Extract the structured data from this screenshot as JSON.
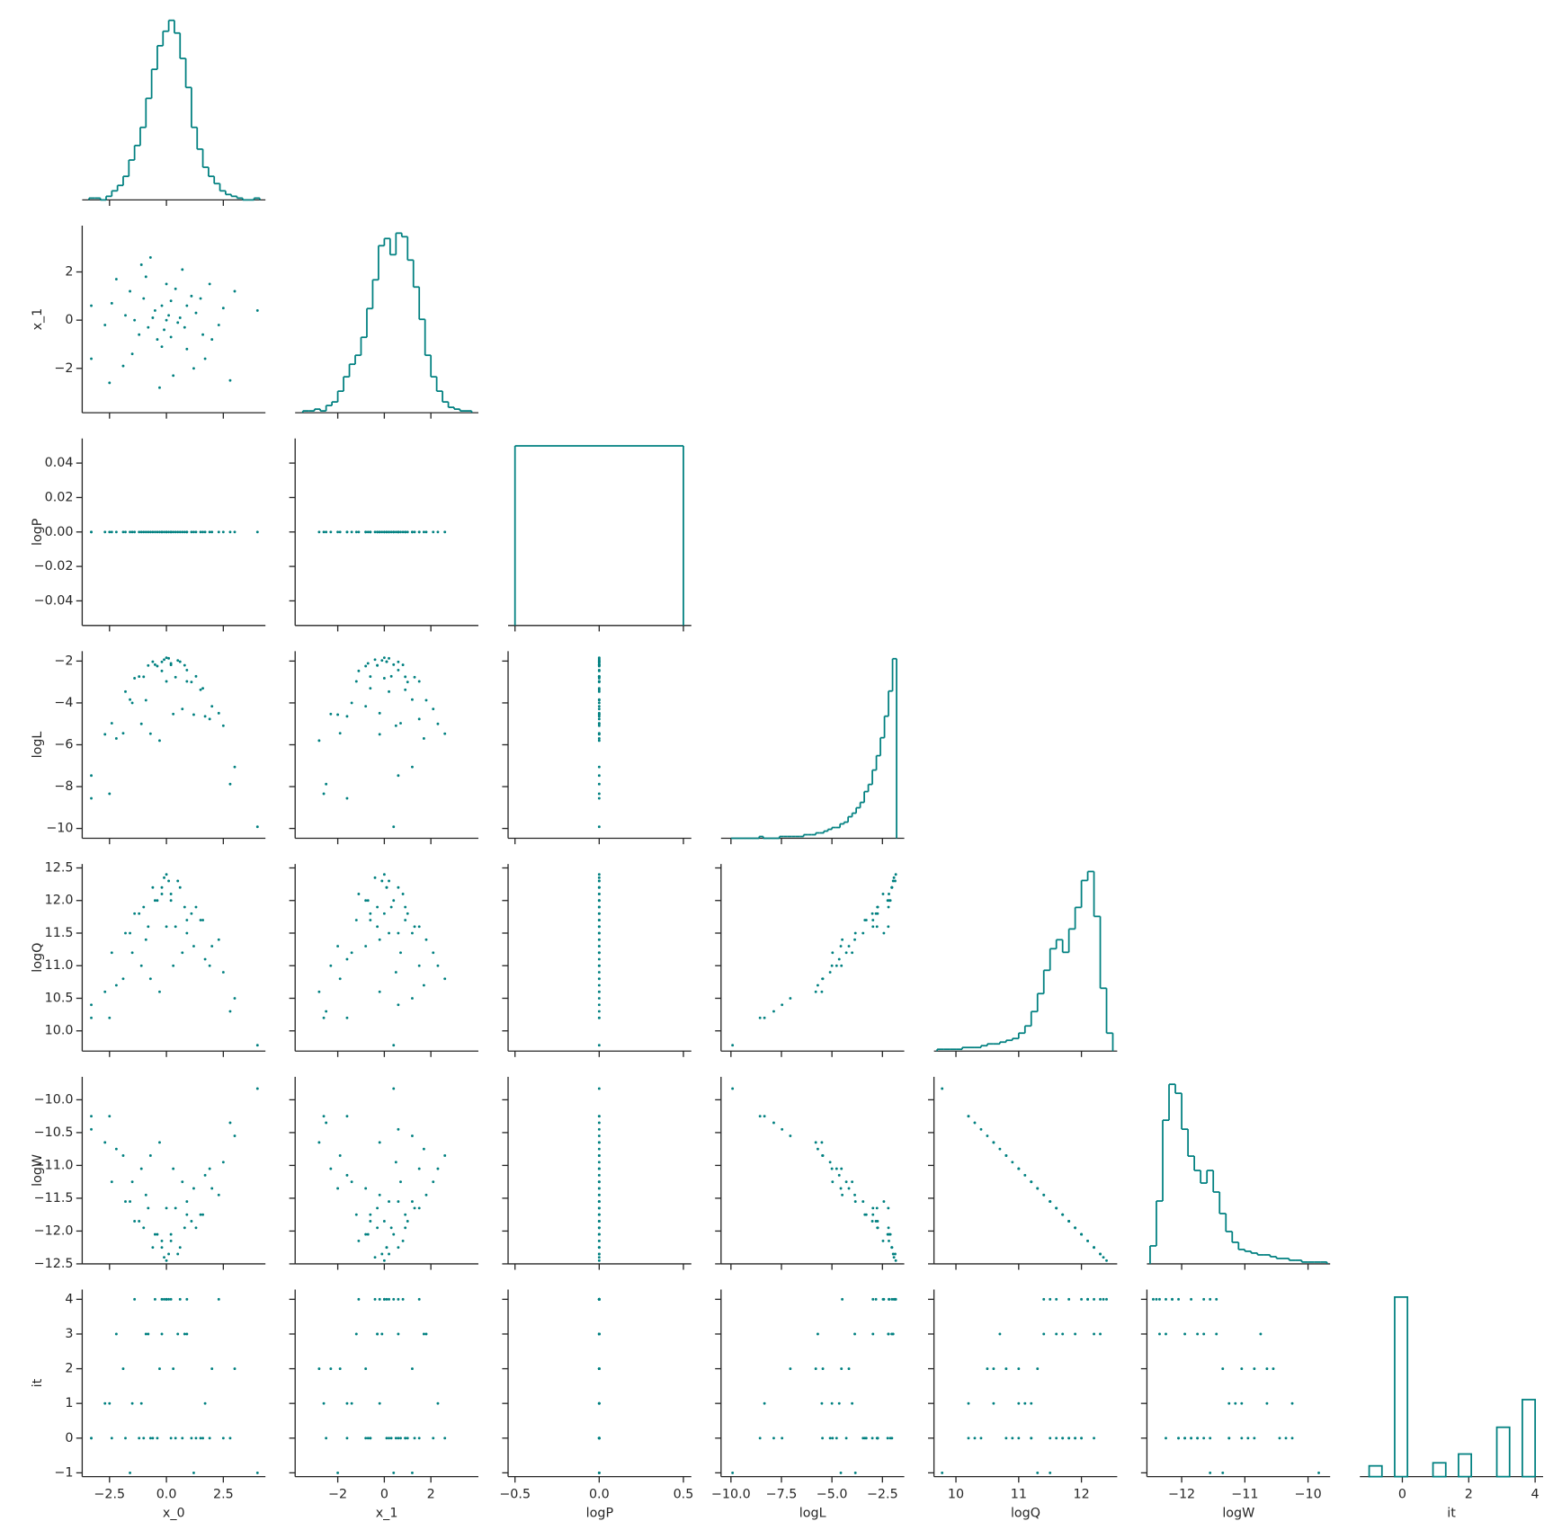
{
  "chart_data": {
    "type": "pairplot",
    "color": "#008080",
    "variables": [
      {
        "name": "x_0",
        "xlim": [
          -3.7,
          4.35
        ],
        "xticks": [
          {
            "value": -2.5,
            "label": "−2.5"
          },
          {
            "value": 0,
            "label": "0.0"
          },
          2.5
        ],
        "values": [
          0.1,
          -0.5,
          0.8,
          -1.2,
          1.5,
          -0.2,
          0.4,
          -1.8,
          2.0,
          -0.9,
          0.6,
          -0.1,
          1.1,
          -1.5,
          2.5,
          -2.7,
          0.3,
          -0.7,
          3.0,
          -3.3,
          0.0,
          0.9,
          -1.0,
          1.7,
          -2.2,
          0.2,
          -0.4,
          1.3,
          -1.4,
          0.7,
          -0.3,
          2.8,
          -2.5,
          4.0,
          -3.3,
          0.5,
          -0.6,
          1.9,
          -1.9,
          0.0,
          1.2,
          -1.1,
          2.3,
          -2.4,
          0.9,
          -0.8,
          0.2,
          -0.2,
          1.6,
          -1.6
        ]
      },
      {
        "name": "x_1",
        "xlim": [
          -3.83,
          4.04
        ],
        "xticks": [
          {
            "value": -2,
            "label": "−2"
          },
          0,
          2
        ],
        "ylim": [
          -3.84,
          3.92
        ],
        "yticks": [
          {
            "value": -2,
            "label": "−2"
          },
          0,
          2
        ],
        "values": [
          0.2,
          0.4,
          -0.3,
          -0.6,
          0.9,
          -1.1,
          1.3,
          0.2,
          -0.8,
          1.8,
          0.1,
          -0.4,
          1.0,
          -1.4,
          0.5,
          -0.2,
          -2.3,
          2.6,
          1.2,
          0.6,
          0.0,
          -1.2,
          0.9,
          -1.6,
          1.7,
          0.8,
          -0.8,
          0.3,
          0.0,
          2.1,
          -2.8,
          -2.5,
          -2.6,
          0.4,
          -1.6,
          -0.1,
          0.1,
          1.5,
          -1.9,
          1.5,
          -2.0,
          2.3,
          -0.2,
          0.7,
          0.6,
          -0.3,
          -0.7,
          0.6,
          -0.6,
          1.2
        ]
      },
      {
        "name": "logP",
        "xlim": [
          -0.541,
          0.547
        ],
        "xticks": [
          {
            "value": -0.5,
            "label": "−0.5"
          },
          {
            "value": 0,
            "label": "0.0"
          },
          0.5
        ],
        "ylim": [
          -0.0543,
          0.0543
        ],
        "yticks": [
          {
            "value": -0.04,
            "label": "−0.04"
          },
          {
            "value": -0.02,
            "label": "−0.02"
          },
          {
            "value": 0,
            "label": "0.00"
          },
          0.02,
          0.04
        ],
        "values": [
          0,
          0,
          0,
          0,
          0,
          0,
          0,
          0,
          0,
          0,
          0,
          0,
          0,
          0,
          0,
          0,
          0,
          0,
          0,
          0,
          0,
          0,
          0,
          0,
          0,
          0,
          0,
          0,
          0,
          0,
          0,
          0,
          0,
          0,
          0,
          0,
          0,
          0,
          0,
          0,
          0,
          0,
          0,
          0,
          0,
          0,
          0,
          0,
          0,
          0
        ]
      },
      {
        "name": "logL",
        "xlim": [
          -10.49,
          -1.42
        ],
        "xticks": [
          {
            "value": -10,
            "label": "−10.0"
          },
          {
            "value": -7.5,
            "label": "−7.5"
          },
          {
            "value": -5,
            "label": "−5.0"
          },
          {
            "value": -2.5,
            "label": "−2.5"
          }
        ],
        "ylim": [
          -10.47,
          -1.53
        ],
        "yticks": [
          {
            "value": -10,
            "label": "−10"
          },
          {
            "value": -8,
            "label": "−8"
          },
          {
            "value": -6,
            "label": "−6"
          },
          {
            "value": -4,
            "label": "−4"
          },
          {
            "value": -2,
            "label": "−2"
          }
        ],
        "values": [
          -1.87,
          -2.17,
          -2.2,
          -2.74,
          -3.37,
          -2.47,
          -2.77,
          -3.46,
          -4.16,
          -3.87,
          -2.03,
          -1.93,
          -3.0,
          -4.0,
          -5.09,
          -5.5,
          -4.53,
          -5.47,
          -7.06,
          -7.47,
          -1.84,
          -2.97,
          -2.75,
          -4.64,
          -5.7,
          -2.18,
          -2.24,
          -2.73,
          -2.82,
          -4.29,
          -5.8,
          -7.88,
          -8.34,
          -9.92,
          -8.56,
          -1.97,
          -2.03,
          -4.77,
          -5.45,
          -2.97,
          -4.56,
          -5.0,
          -4.49,
          -4.97,
          -2.43,
          -2.21,
          -2.11,
          -2.04,
          -3.3,
          -3.84
        ]
      },
      {
        "name": "logQ",
        "xlim": [
          9.65,
          12.57
        ],
        "xticks": [
          10,
          11,
          12
        ],
        "ylim": [
          9.69,
          12.56
        ],
        "yticks": [
          {
            "value": 10,
            "label": "10.0"
          },
          10.5,
          {
            "value": 11,
            "label": "11.0"
          },
          11.5,
          {
            "value": 12,
            "label": "12.0"
          },
          12.5
        ],
        "values": [
          12.3,
          12.0,
          11.9,
          11.8,
          11.7,
          12.1,
          11.6,
          11.5,
          11.3,
          11.4,
          12.2,
          12.35,
          11.8,
          11.2,
          10.9,
          10.6,
          11.0,
          10.8,
          10.5,
          10.4,
          12.4,
          11.7,
          11.9,
          11.1,
          10.7,
          12.1,
          12.0,
          11.9,
          11.8,
          11.2,
          10.6,
          10.3,
          10.2,
          9.78,
          10.2,
          12.3,
          12.2,
          11.0,
          10.8,
          11.6,
          11.3,
          11.0,
          11.4,
          11.2,
          11.5,
          11.6,
          12.0,
          12.2,
          11.7,
          11.5
        ]
      },
      {
        "name": "logW",
        "xlim": [
          -12.55,
          -9.65
        ],
        "xticks": [
          {
            "value": -12,
            "label": "−12"
          },
          {
            "value": -11,
            "label": "−11"
          },
          {
            "value": -10,
            "label": "−10"
          }
        ],
        "ylim": [
          -12.5,
          -9.65
        ],
        "yticks": [
          {
            "value": -12.5,
            "label": "−12.5"
          },
          {
            "value": -12,
            "label": "−12.0"
          },
          {
            "value": -11.5,
            "label": "−11.5"
          },
          {
            "value": -11,
            "label": "−11.0"
          },
          {
            "value": -10.5,
            "label": "−10.5"
          },
          {
            "value": -10,
            "label": "−10.0"
          }
        ],
        "values": [
          -12.35,
          -12.05,
          -11.95,
          -11.85,
          -11.75,
          -12.15,
          -11.65,
          -11.55,
          -11.35,
          -11.45,
          -12.25,
          -12.4,
          -11.85,
          -11.25,
          -10.95,
          -10.65,
          -11.05,
          -10.85,
          -10.55,
          -10.45,
          -12.45,
          -11.75,
          -11.95,
          -11.15,
          -10.75,
          -12.15,
          -12.05,
          -11.95,
          -11.85,
          -11.25,
          -10.65,
          -10.35,
          -10.25,
          -9.83,
          -10.25,
          -12.35,
          -12.25,
          -11.05,
          -10.85,
          -11.65,
          -11.35,
          -11.05,
          -11.45,
          -11.25,
          -11.55,
          -11.65,
          -12.05,
          -12.25,
          -11.75,
          -11.55
        ]
      },
      {
        "name": "it",
        "xlim": [
          -1.28,
          4.24
        ],
        "xticks": [
          0,
          2,
          4
        ],
        "ylim": [
          -1.11,
          4.28
        ],
        "yticks": [
          {
            "value": -1,
            "label": "−1"
          },
          0,
          1,
          2,
          3,
          4
        ],
        "values": [
          4,
          4,
          3,
          0,
          0,
          4,
          0,
          0,
          2,
          3,
          4,
          4,
          0,
          1,
          0,
          1,
          2,
          0,
          2,
          0,
          4,
          3,
          0,
          1,
          3,
          4,
          0,
          0,
          4,
          0,
          2,
          0,
          1,
          -1,
          0,
          3,
          0,
          0,
          2,
          4,
          -1,
          1,
          4,
          0,
          4,
          3,
          0,
          3,
          0,
          -1
        ]
      }
    ],
    "diagonal": [
      {
        "element": "step",
        "bins": [
          -3.4,
          -3.15,
          -2.9,
          -2.65,
          -2.4,
          -2.15,
          -1.9,
          -1.65,
          -1.4,
          -1.15,
          -0.9,
          -0.65,
          -0.4,
          -0.15,
          0.1,
          0.35,
          0.6,
          0.85,
          1.1,
          1.35,
          1.6,
          1.85,
          2.1,
          2.35,
          2.6,
          2.85,
          3.1,
          3.35,
          3.6,
          3.85,
          4.1
        ],
        "counts": [
          1,
          1,
          0,
          2,
          5,
          8,
          13,
          22,
          30,
          40,
          56,
          72,
          85,
          93,
          99,
          92,
          78,
          62,
          40,
          28,
          18,
          13,
          9,
          5,
          3,
          2,
          1,
          0,
          0,
          1
        ]
      },
      {
        "element": "step",
        "bins": [
          -3.5,
          -3.25,
          -3.0,
          -2.75,
          -2.5,
          -2.25,
          -2.0,
          -1.75,
          -1.5,
          -1.25,
          -1.0,
          -0.75,
          -0.5,
          -0.25,
          0.0,
          0.25,
          0.5,
          0.75,
          1.0,
          1.25,
          1.5,
          1.75,
          2.0,
          2.25,
          2.5,
          2.75,
          3.0,
          3.25,
          3.5,
          3.75
        ],
        "counts": [
          1,
          1,
          2,
          1,
          4,
          6,
          12,
          20,
          27,
          32,
          42,
          58,
          74,
          93,
          97,
          88,
          100,
          98,
          85,
          70,
          52,
          32,
          20,
          12,
          6,
          3,
          2,
          1,
          1
        ]
      },
      {
        "element": "step",
        "bins": [
          -0.5,
          0.5
        ],
        "counts": [
          1
        ]
      },
      {
        "element": "step",
        "bins": [
          -10.0,
          -9.8,
          -9.6,
          -9.4,
          -9.2,
          -9.0,
          -8.8,
          -8.6,
          -8.4,
          -8.2,
          -8.0,
          -7.8,
          -7.6,
          -7.4,
          -7.2,
          -7.0,
          -6.8,
          -6.6,
          -6.4,
          -6.2,
          -6.0,
          -5.8,
          -5.6,
          -5.4,
          -5.2,
          -5.0,
          -4.8,
          -4.6,
          -4.4,
          -4.2,
          -4.0,
          -3.8,
          -3.6,
          -3.4,
          -3.2,
          -3.0,
          -2.8,
          -2.6,
          -2.4,
          -2.2,
          -2.0,
          -1.8
        ],
        "counts": [
          0,
          0,
          0,
          0,
          0,
          0,
          0,
          1,
          0,
          0,
          0,
          0,
          1,
          1,
          1,
          1,
          1,
          1,
          2,
          2,
          2,
          3,
          3,
          4,
          5,
          6,
          6,
          8,
          9,
          12,
          14,
          17,
          20,
          26,
          30,
          38,
          46,
          56,
          68,
          82,
          100
        ]
      },
      {
        "element": "step",
        "bins": [
          9.7,
          9.8,
          9.9,
          10.0,
          10.1,
          10.2,
          10.3,
          10.4,
          10.5,
          10.6,
          10.7,
          10.8,
          10.9,
          11.0,
          11.1,
          11.2,
          11.3,
          11.4,
          11.5,
          11.6,
          11.7,
          11.8,
          11.9,
          12.0,
          12.1,
          12.2,
          12.3,
          12.4,
          12.5
        ],
        "counts": [
          1,
          1,
          1,
          1,
          2,
          2,
          2,
          3,
          4,
          4,
          5,
          6,
          7,
          10,
          14,
          22,
          32,
          45,
          57,
          62,
          55,
          68,
          80,
          95,
          100,
          75,
          35,
          10
        ]
      },
      {
        "element": "step",
        "bins": [
          -12.5,
          -12.4,
          -12.3,
          -12.2,
          -12.1,
          -12.0,
          -11.9,
          -11.8,
          -11.7,
          -11.6,
          -11.5,
          -11.4,
          -11.3,
          -11.2,
          -11.1,
          -11.0,
          -10.9,
          -10.8,
          -10.7,
          -10.6,
          -10.5,
          -10.4,
          -10.3,
          -10.2,
          -10.1,
          -10.0,
          -9.9,
          -9.8,
          -9.7
        ],
        "counts": [
          10,
          35,
          80,
          100,
          95,
          75,
          60,
          52,
          45,
          52,
          40,
          28,
          18,
          12,
          8,
          7,
          6,
          5,
          5,
          4,
          3,
          3,
          2,
          2,
          1,
          1,
          1,
          1
        ]
      },
      {
        "element": "bars",
        "bins": [
          -1,
          -0.615,
          -0.231,
          0.154,
          0.538,
          0.923,
          1.308,
          1.692,
          2.077,
          2.462,
          2.846,
          3.231,
          3.615,
          4
        ],
        "counts": [
          60,
          0,
          1000,
          0,
          0,
          77,
          0,
          126,
          0,
          0,
          275,
          0,
          429
        ]
      }
    ]
  }
}
